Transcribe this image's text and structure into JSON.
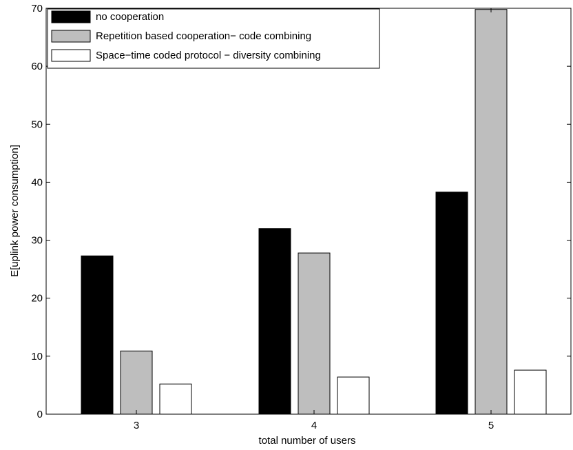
{
  "chart_data": {
    "type": "bar",
    "title": "",
    "xlabel": "total number of users",
    "ylabel": "E[uplink power consumption]",
    "categories": [
      "3",
      "4",
      "5"
    ],
    "ylim": [
      0,
      70
    ],
    "yticks": [
      0,
      10,
      20,
      30,
      40,
      50,
      60,
      70
    ],
    "grid": false,
    "legend_position": "top-left",
    "series": [
      {
        "name": "no cooperation",
        "color": "#000000",
        "values": [
          27.3,
          32.0,
          38.3
        ]
      },
      {
        "name": "Repetition based cooperation− code combining",
        "color": "#bebebe",
        "values": [
          10.9,
          27.8,
          69.8
        ]
      },
      {
        "name": "Space−time coded protocol − diversity combining",
        "color": "#ffffff",
        "values": [
          5.2,
          6.4,
          7.6
        ]
      }
    ]
  }
}
